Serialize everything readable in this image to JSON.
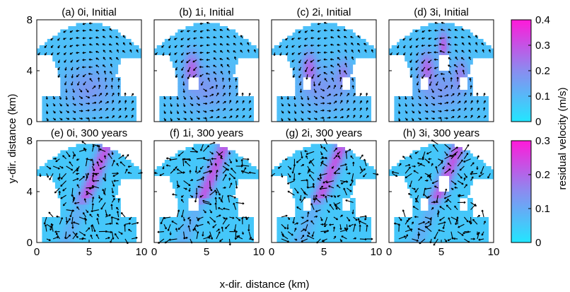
{
  "figure": {
    "xlabel": "x-dir. distance (km)",
    "ylabel": "y-dir. distance (km)",
    "colorbar_label": "residual velocity (m/s)"
  },
  "colors": {
    "low": "#22e6ff",
    "mid": "#8a8cf0",
    "high": "#ff1ad9",
    "arrow": "#000000"
  },
  "chart_data": [
    {
      "type": "heatmap",
      "title": "(a) 0i, Initial",
      "row": 0,
      "col": 0,
      "islands": 0,
      "xlim": [
        0,
        10
      ],
      "ylim": [
        0,
        8
      ],
      "xticks": [],
      "yticks": [
        "0",
        "4",
        "8"
      ],
      "clim": [
        0,
        0.4
      ]
    },
    {
      "type": "heatmap",
      "title": "(b) 1i, Initial",
      "row": 0,
      "col": 1,
      "islands": 1,
      "xlim": [
        0,
        10
      ],
      "ylim": [
        0,
        8
      ],
      "xticks": [],
      "yticks": [],
      "clim": [
        0,
        0.4
      ]
    },
    {
      "type": "heatmap",
      "title": "(c) 2i, Initial",
      "row": 0,
      "col": 2,
      "islands": 2,
      "xlim": [
        0,
        10
      ],
      "ylim": [
        0,
        8
      ],
      "xticks": [],
      "yticks": [],
      "clim": [
        0,
        0.4
      ]
    },
    {
      "type": "heatmap",
      "title": "(d) 3i, Initial",
      "row": 0,
      "col": 3,
      "islands": 3,
      "xlim": [
        0,
        10
      ],
      "ylim": [
        0,
        8
      ],
      "xticks": [],
      "yticks": [],
      "clim": [
        0,
        0.4
      ]
    },
    {
      "type": "heatmap",
      "title": "(e) 0i, 300 years",
      "row": 1,
      "col": 0,
      "islands": 0,
      "xlim": [
        0,
        10
      ],
      "ylim": [
        0,
        8
      ],
      "xticks": [
        "0",
        "5",
        "10"
      ],
      "yticks": [
        "0",
        "4",
        "8"
      ],
      "clim": [
        0,
        0.3
      ]
    },
    {
      "type": "heatmap",
      "title": "(f) 1i, 300 years",
      "row": 1,
      "col": 1,
      "islands": 1,
      "xlim": [
        0,
        10
      ],
      "ylim": [
        0,
        8
      ],
      "xticks": [
        "0",
        "5",
        "10"
      ],
      "yticks": [],
      "clim": [
        0,
        0.3
      ]
    },
    {
      "type": "heatmap",
      "title": "(g) 2i, 300 years",
      "row": 1,
      "col": 2,
      "islands": 2,
      "xlim": [
        0,
        10
      ],
      "ylim": [
        0,
        8
      ],
      "xticks": [
        "0",
        "5",
        "10"
      ],
      "yticks": [],
      "clim": [
        0,
        0.3
      ]
    },
    {
      "type": "heatmap",
      "title": "(h) 3i, 300 years",
      "row": 1,
      "col": 3,
      "islands": 3,
      "xlim": [
        0,
        10
      ],
      "ylim": [
        0,
        8
      ],
      "xticks": [
        "0",
        "5",
        "10"
      ],
      "yticks": [],
      "clim": [
        0,
        0.3
      ]
    }
  ],
  "colorbars": [
    {
      "row": 0,
      "ticks": [
        "0",
        "0.1",
        "0.2",
        "0.3",
        "0.4"
      ],
      "values": [
        0,
        0.1,
        0.2,
        0.3,
        0.4
      ],
      "range": [
        0,
        0.4
      ]
    },
    {
      "row": 1,
      "ticks": [
        "0",
        "0.1",
        "0.2",
        "0.3"
      ],
      "values": [
        0,
        0.1,
        0.2,
        0.3
      ],
      "range": [
        0,
        0.3
      ]
    }
  ]
}
